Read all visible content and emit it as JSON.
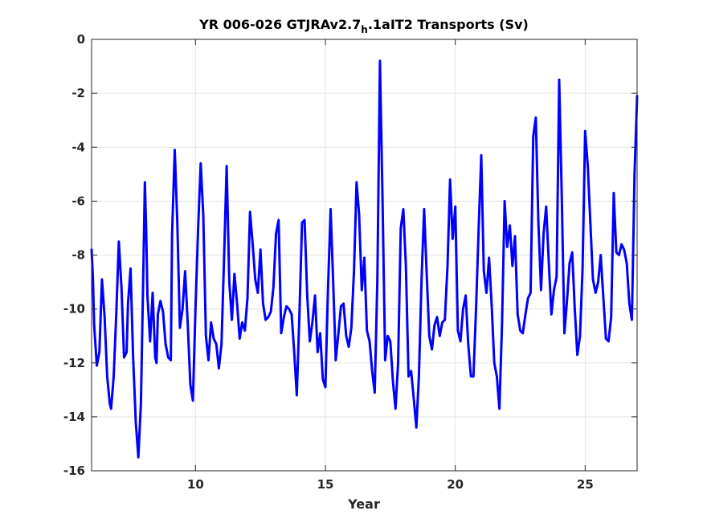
{
  "chart_data": {
    "type": "line",
    "title": {
      "before_subscript": "YR 006-026 GTJRAv2.7",
      "subscript": "h",
      "after_subscript": ".1aIT2 Transports (Sv)"
    },
    "xlabel": "Year",
    "ylabel": "",
    "xlim": [
      6,
      27
    ],
    "ylim": [
      -16,
      0
    ],
    "xticks": [
      10,
      15,
      20,
      25
    ],
    "yticks": [
      0,
      -2,
      -4,
      -6,
      -8,
      -10,
      -12,
      -14,
      -16
    ],
    "grid": true,
    "line_color": "#0000ff",
    "series": [
      {
        "x": [
          6.0,
          6.05,
          6.1,
          6.2,
          6.3,
          6.4,
          6.5,
          6.6,
          6.7,
          6.75,
          6.85,
          6.95,
          7.05,
          7.15,
          7.25,
          7.35,
          7.4,
          7.5,
          7.6,
          7.7,
          7.8,
          7.9,
          8.0,
          8.05,
          8.1,
          8.15,
          8.25,
          8.35,
          8.45,
          8.5,
          8.55,
          8.65,
          8.75,
          8.85,
          8.95,
          9.05,
          9.1,
          9.2,
          9.3,
          9.4,
          9.5,
          9.6,
          9.7,
          9.8,
          9.9,
          10.0,
          10.1,
          10.2,
          10.3,
          10.4,
          10.5,
          10.6,
          10.7,
          10.8,
          10.9,
          11.0,
          11.1,
          11.2,
          11.3,
          11.4,
          11.5,
          11.6,
          11.7,
          11.8,
          11.9,
          12.0,
          12.1,
          12.2,
          12.3,
          12.4,
          12.5,
          12.6,
          12.7,
          12.8,
          12.9,
          13.0,
          13.1,
          13.2,
          13.3,
          13.4,
          13.5,
          13.6,
          13.7,
          13.8,
          13.9,
          14.0,
          14.1,
          14.2,
          14.3,
          14.4,
          14.5,
          14.6,
          14.7,
          14.8,
          14.9,
          15.0,
          15.1,
          15.2,
          15.3,
          15.4,
          15.5,
          15.6,
          15.7,
          15.8,
          15.9,
          16.0,
          16.1,
          16.2,
          16.3,
          16.4,
          16.5,
          16.6,
          16.7,
          16.8,
          16.9,
          17.0,
          17.1,
          17.2,
          17.3,
          17.4,
          17.5,
          17.6,
          17.7,
          17.8,
          17.9,
          18.0,
          18.1,
          18.2,
          18.3,
          18.4,
          18.5,
          18.6,
          18.7,
          18.8,
          18.9,
          19.0,
          19.1,
          19.2,
          19.3,
          19.4,
          19.5,
          19.6,
          19.7,
          19.8,
          19.9,
          20.0,
          20.1,
          20.2,
          20.3,
          20.4,
          20.5,
          20.6,
          20.7,
          20.8,
          20.9,
          21.0,
          21.1,
          21.2,
          21.3,
          21.4,
          21.5,
          21.6,
          21.7,
          21.8,
          21.9,
          22.0,
          22.1,
          22.2,
          22.3,
          22.4,
          22.5,
          22.6,
          22.7,
          22.8,
          22.9,
          23.0,
          23.1,
          23.2,
          23.3,
          23.4,
          23.5,
          23.6,
          23.7,
          23.8,
          23.9,
          24.0,
          24.1,
          24.2,
          24.3,
          24.4,
          24.5,
          24.6,
          24.7,
          24.8,
          24.9,
          25.0,
          25.1,
          25.2,
          25.3,
          25.4,
          25.5,
          25.6,
          25.7,
          25.8,
          25.9,
          26.0,
          26.1,
          26.2,
          26.3,
          26.4,
          26.5,
          26.6,
          26.7,
          26.8,
          26.9,
          27.0
        ],
        "y": [
          -7.8,
          -8.8,
          -10.6,
          -12.1,
          -11.6,
          -8.9,
          -10.3,
          -12.5,
          -13.5,
          -13.7,
          -12.5,
          -10.2,
          -7.5,
          -9.2,
          -11.8,
          -11.6,
          -9.8,
          -8.5,
          -11.8,
          -14.2,
          -15.5,
          -13.5,
          -8.1,
          -5.3,
          -7.0,
          -9.5,
          -11.2,
          -9.4,
          -11.8,
          -12.0,
          -10.2,
          -9.7,
          -10.1,
          -11.3,
          -11.8,
          -11.9,
          -7.2,
          -4.1,
          -6.8,
          -10.7,
          -10.0,
          -8.6,
          -10.5,
          -12.8,
          -13.4,
          -10.0,
          -7.0,
          -4.6,
          -6.5,
          -11.0,
          -11.9,
          -10.5,
          -11.1,
          -11.3,
          -12.2,
          -11.3,
          -8.1,
          -4.7,
          -9.0,
          -10.4,
          -8.7,
          -9.8,
          -11.1,
          -10.5,
          -10.8,
          -9.6,
          -6.4,
          -7.6,
          -8.9,
          -9.4,
          -7.8,
          -9.8,
          -10.4,
          -10.3,
          -10.1,
          -9.2,
          -7.2,
          -6.7,
          -10.9,
          -10.3,
          -9.9,
          -10.0,
          -10.2,
          -11.6,
          -13.2,
          -10.2,
          -6.8,
          -6.7,
          -9.5,
          -11.2,
          -10.5,
          -9.5,
          -11.6,
          -10.9,
          -12.6,
          -12.9,
          -9.3,
          -6.3,
          -9.0,
          -11.9,
          -10.9,
          -9.9,
          -9.8,
          -11.0,
          -11.4,
          -10.7,
          -8.6,
          -5.3,
          -6.5,
          -9.3,
          -8.1,
          -10.8,
          -11.2,
          -12.3,
          -13.1,
          -8.9,
          -0.8,
          -5.9,
          -11.9,
          -11.0,
          -11.2,
          -12.7,
          -13.7,
          -12.0,
          -7.0,
          -6.3,
          -8.4,
          -12.5,
          -12.3,
          -13.3,
          -14.4,
          -12.5,
          -9.0,
          -6.3,
          -8.7,
          -11.0,
          -11.5,
          -10.6,
          -10.3,
          -11.0,
          -10.5,
          -10.4,
          -8.4,
          -5.2,
          -7.4,
          -6.2,
          -10.8,
          -11.2,
          -10.0,
          -9.5,
          -11.3,
          -12.5,
          -12.5,
          -10.0,
          -7.0,
          -4.3,
          -8.6,
          -9.4,
          -8.1,
          -9.8,
          -12.0,
          -12.5,
          -13.7,
          -10.5,
          -6.0,
          -7.7,
          -6.9,
          -8.4,
          -7.3,
          -10.2,
          -10.8,
          -10.9,
          -10.2,
          -9.6,
          -9.4,
          -3.6,
          -2.9,
          -6.8,
          -9.3,
          -7.2,
          -6.2,
          -8.3,
          -10.2,
          -9.3,
          -8.8,
          -1.5,
          -5.8,
          -10.9,
          -9.7,
          -8.3,
          -7.9,
          -10.0,
          -11.7,
          -11.0,
          -8.5,
          -3.4,
          -4.7,
          -6.8,
          -8.9,
          -9.4,
          -9.0,
          -8.0,
          -9.6,
          -11.1,
          -11.2,
          -10.3,
          -5.7,
          -7.9,
          -8.0,
          -7.6,
          -7.8,
          -8.3,
          -9.8,
          -10.4,
          -5.0,
          -2.1
        ]
      }
    ]
  }
}
